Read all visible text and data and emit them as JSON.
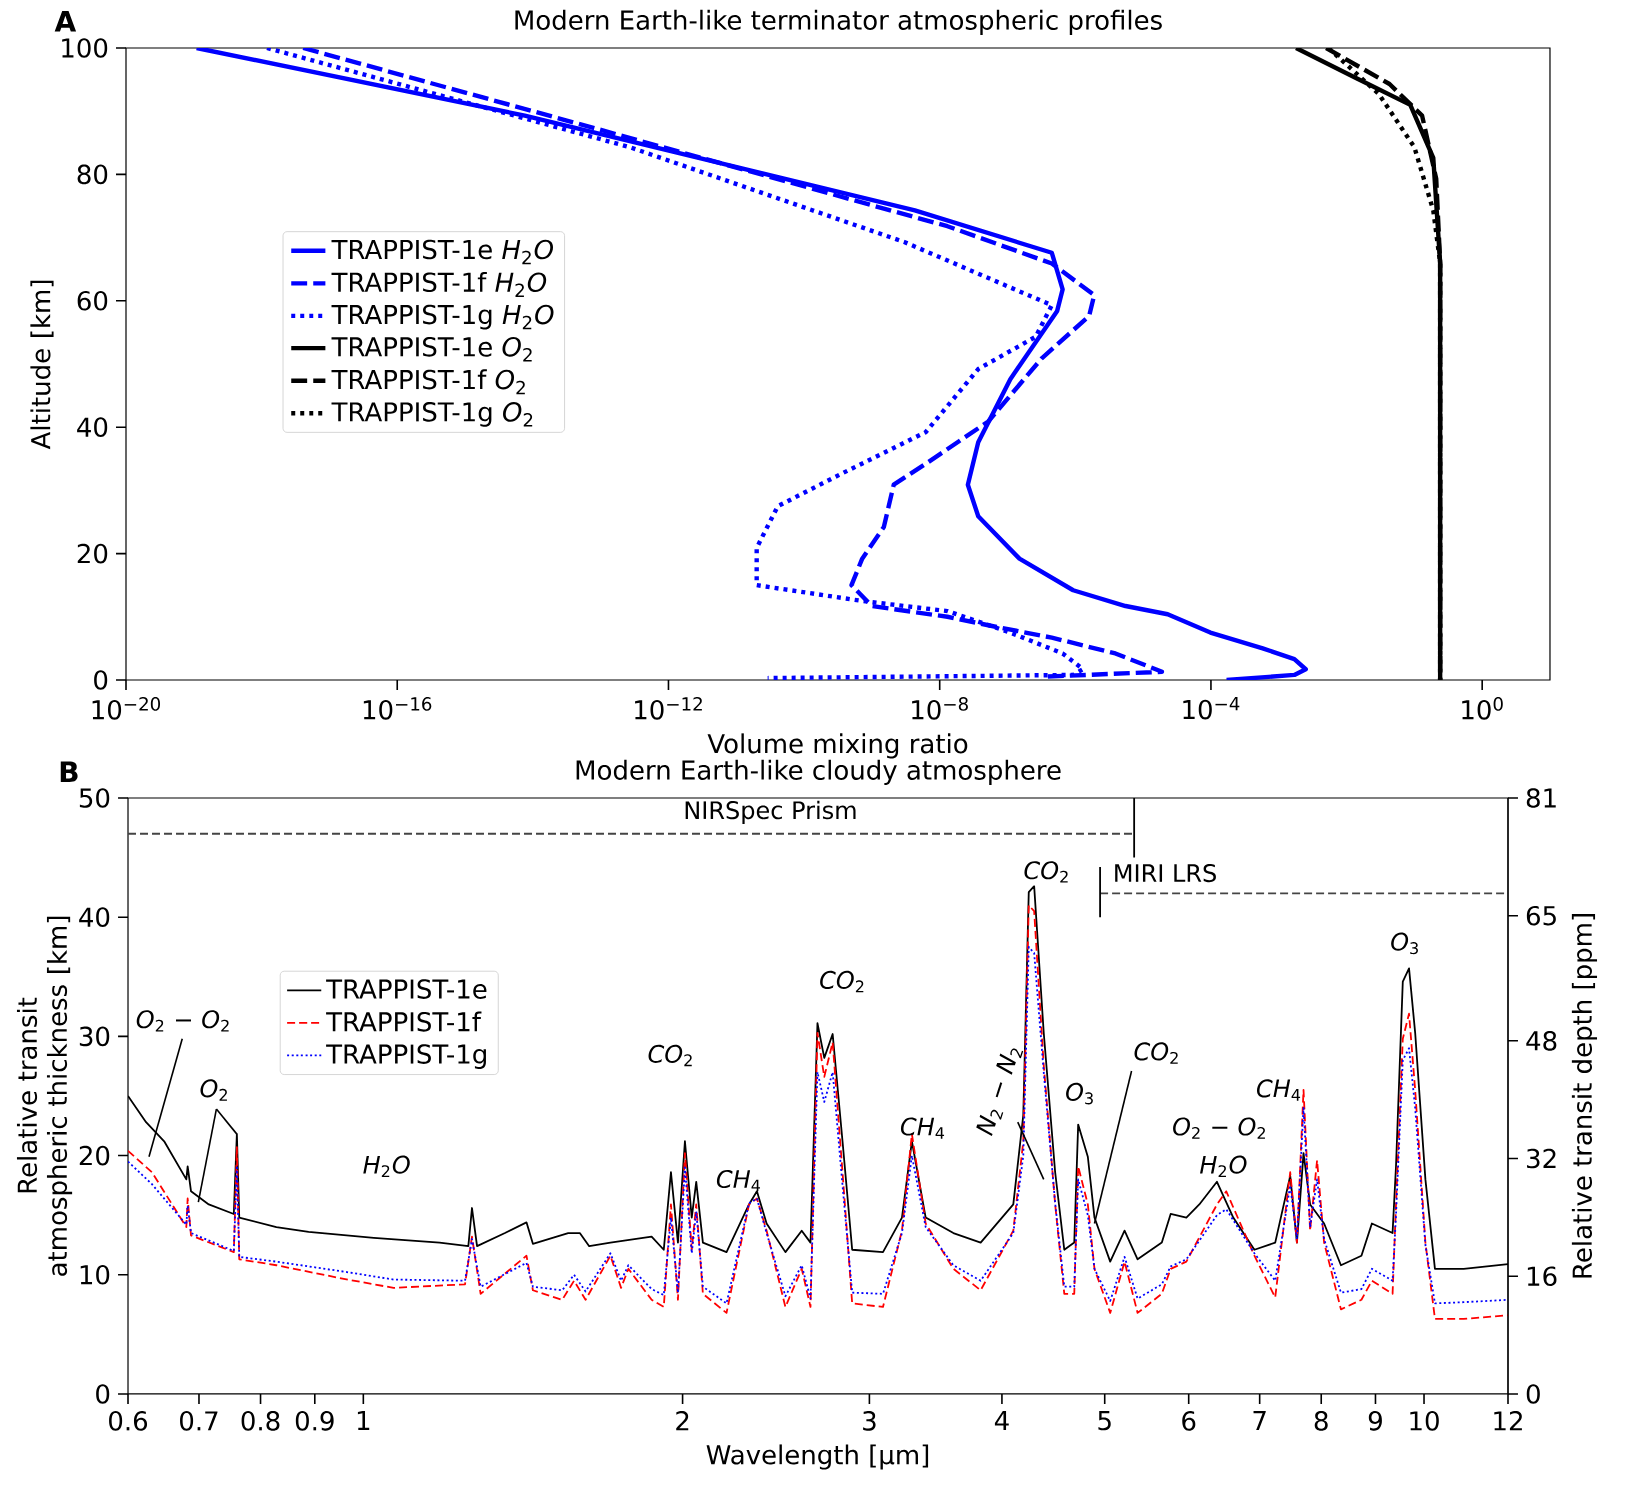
{
  "chart_data": [
    {
      "type": "line",
      "title": "Modern Earth-like terminator atmospheric profiles",
      "xlabel": "Volume mixing ratio",
      "ylabel": "Altitude [km]",
      "log": "x",
      "legend": "left",
      "xlim": [
        1e-20,
        10
      ],
      "ylim": [
        0,
        100
      ],
      "xticks": [
        {
          "value": 1e-20,
          "label": "10$^{−20}$"
        },
        {
          "value": 1e-16,
          "label": "10$^{−16}$"
        },
        {
          "value": 1e-12,
          "label": "10$^{−12}$"
        },
        {
          "value": 1e-08,
          "label": "10$^{−8}$"
        },
        {
          "value": 0.0001,
          "label": "10$^{−4}$"
        },
        {
          "value": 1,
          "label": "10$^{0}$"
        }
      ],
      "yticks": [
        0,
        20,
        40,
        60,
        80,
        100
      ],
      "annotations": [
        "A"
      ],
      "series": [
        {
          "name": "TRAPPIST-1e *H*$_{2}$*O*",
          "color": "#0000ff",
          "line_style": "solid",
          "x": [
            1.1e-19,
            7.6e-15,
            4.3e-09,
            4.5e-07,
            6.5e-07,
            5.4e-07,
            1.1e-07,
            3.7e-08,
            2.6e-08,
            3.7e-08,
            1.5e-07,
            9.3e-07,
            5.5e-06,
            2.3e-05,
            9.8e-05,
            0.00058,
            0.0017,
            0.0025,
            0.0017,
            0.00017
          ],
          "values": [
            100,
            89.3,
            74.3,
            67.6,
            61.8,
            58.4,
            47.6,
            37.6,
            30.9,
            25.9,
            19.2,
            14.2,
            11.7,
            10.4,
            7.5,
            5,
            3.3,
            1.7,
            0.8,
            0
          ]
        },
        {
          "name": "TRAPPIST-1f *H*$_{2}$*O*",
          "color": "#0000ff",
          "line_style": "dashed",
          "x": [
            4.1e-18,
            6.5e-14,
            1.3e-08,
            4.5e-07,
            1.9e-06,
            1.6e-06,
            3.2e-07,
            5.2e-08,
            6.2e-09,
            2.1e-09,
            1.5e-09,
            7.2e-10,
            5e-10,
            1e-09,
            1.3e-08,
            7.6e-08,
            4.5e-07,
            3.9e-06,
            1.9e-05,
            3.2e-07
          ],
          "values": [
            100,
            87.6,
            71.8,
            65.9,
            60.9,
            57.6,
            50.9,
            40.9,
            34.2,
            30.9,
            24.2,
            19.2,
            15.0,
            11.7,
            10.0,
            8.3,
            6.7,
            4.2,
            1.3,
            0.5
          ]
        },
        {
          "name": "TRAPPIST-1g *H*$_{2}$*O*",
          "color": "#0000ff",
          "line_style": "dotted",
          "x": [
            1.2e-18,
            2.7e-13,
            3e-09,
            4.5e-07,
            2.6e-07,
            3.7e-08,
            6.2e-09,
            3.5e-10,
            4.1e-11,
            2e-11,
            2e-11,
            7.2e-10,
            1.3e-08,
            1.1e-07,
            6.5e-07,
            1.3e-06,
            9.3e-07,
            2.9e-11
          ],
          "values": [
            100,
            84.3,
            69.3,
            59.3,
            54.3,
            49.2,
            39.2,
            32.6,
            27.5,
            20.9,
            15.0,
            12.5,
            10.9,
            7.5,
            4.2,
            1.7,
            0.8,
            0.3
          ]
        },
        {
          "name": "TRAPPIST-1e *O*$_{2}$",
          "color": "#000000",
          "line_style": "solid",
          "x": [
            0.0018,
            0.014,
            0.087,
            0.19,
            0.24,
            0.24
          ],
          "values": [
            100,
            95.2,
            91,
            82.6,
            66,
            0
          ]
        },
        {
          "name": "TRAPPIST-1f *O*$_{2}$",
          "color": "#000000",
          "line_style": "dashed",
          "x": [
            0.005,
            0.043,
            0.13,
            0.21,
            0.24,
            0.24
          ],
          "values": [
            100,
            94.3,
            89.3,
            79.3,
            66,
            0
          ]
        },
        {
          "name": "TRAPPIST-1g *O*$_{2}$",
          "color": "#000000",
          "line_style": "dotted",
          "x": [
            0.0054,
            0.03,
            0.1,
            0.19,
            0.24,
            0.24
          ],
          "values": [
            100,
            92.7,
            84.3,
            74.3,
            66,
            0
          ]
        }
      ]
    },
    {
      "type": "line",
      "title": "Modern Earth-like cloudy atmosphere",
      "xlabel": "Wavelength [μm]",
      "ylabel": "Relative transit atmospheric thickness [km]",
      "y2label": "Relative transit depth [ppm]",
      "log": "x",
      "legend": "left",
      "xlim": [
        0.6,
        12
      ],
      "ylim": [
        0,
        50
      ],
      "y2lim": [
        0,
        81
      ],
      "xticks": [
        0.6,
        0.7,
        0.8,
        0.9,
        1,
        2,
        3,
        4,
        5,
        6,
        7,
        8,
        9,
        10,
        12
      ],
      "yticks": [
        0,
        10,
        20,
        30,
        40,
        50
      ],
      "y2ticks": [
        0,
        16,
        32,
        48,
        65,
        81
      ],
      "annotations": [
        "B",
        "*O*$_{2}$ − *O*$_{2}$",
        {
          "text": "*O*$_{2}$",
          "x": 0.76,
          "y": 21.8
        },
        "*H*$_{2}$*O*",
        "*CO*$_{2}$",
        "*CH*$_{4}$",
        "*CO*$_{2}$",
        "*CH*$_{4}$",
        "*N*$_{2}$ − *N*$_{2}$",
        "*CO*$_{2}$",
        "*O*$_{3}$",
        {
          "text": "*CO*$_{2}$",
          "x": 4.89,
          "y": 14.3
        },
        "*O*$_{2}$ − *O*$_{2}$",
        "*H*$_{2}$*O*",
        "*CH*$_{4}$",
        "*O*$_{3}$",
        "NIRSpec Prism",
        "MIRI LRS"
      ],
      "series": [
        {
          "name": "TRAPPIST-1e",
          "color": "#000000",
          "line_style": "solid",
          "x": [
            0.6,
            0.624,
            0.649,
            0.681,
            0.683,
            0.688,
            0.715,
            0.755,
            0.76,
            0.764,
            0.828,
            0.888,
            1.023,
            1.18,
            1.256,
            1.266,
            1.28,
            1.36,
            1.425,
            1.445,
            1.56,
            1.6,
            1.633,
            1.71,
            1.87,
            1.92,
            1.95,
            1.98,
            2.01,
            2.04,
            2.06,
            2.09,
            2.2,
            2.31,
            2.35,
            2.4,
            2.5,
            2.59,
            2.64,
            2.68,
            2.72,
            2.77,
            2.83,
            2.89,
            3.09,
            3.22,
            3.29,
            3.39,
            3.6,
            3.82,
            4.1,
            4.19,
            4.24,
            4.29,
            4.38,
            4.49,
            4.58,
            4.68,
            4.72,
            4.82,
            4.89,
            5.06,
            5.22,
            5.37,
            5.66,
            5.77,
            5.97,
            6.14,
            6.38,
            6.61,
            6.92,
            7.24,
            7.48,
            7.59,
            7.7,
            7.81,
            8.05,
            8.35,
            8.73,
            8.93,
            9.34,
            9.41,
            9.55,
            9.68,
            9.81,
            10.03,
            10.24,
            10.9,
            12
          ],
          "values": [
            25.0,
            22.8,
            21.2,
            18.0,
            19.1,
            17.0,
            15.9,
            15.1,
            21.8,
            14.8,
            14.0,
            13.6,
            13.1,
            12.7,
            12.4,
            15.6,
            12.4,
            13.5,
            14.4,
            12.6,
            13.5,
            13.5,
            12.4,
            12.7,
            13.2,
            12.1,
            18.6,
            12.7,
            21.2,
            14.8,
            17.8,
            12.7,
            11.9,
            15.9,
            17.0,
            14.3,
            11.9,
            13.7,
            12.7,
            31.1,
            28.2,
            30.2,
            21.2,
            12.1,
            11.9,
            14.8,
            21.2,
            14.8,
            13.5,
            12.7,
            15.9,
            23.4,
            42.1,
            42.6,
            30.3,
            18.6,
            12.1,
            12.7,
            22.6,
            19.9,
            14.8,
            11.1,
            13.7,
            11.3,
            12.7,
            15.1,
            14.8,
            15.9,
            17.8,
            14.8,
            12.1,
            12.7,
            18.3,
            12.7,
            20.2,
            15.9,
            14.3,
            10.8,
            11.6,
            14.3,
            13.5,
            19.1,
            34.6,
            35.7,
            30.3,
            18.0,
            10.5,
            10.5,
            10.9
          ]
        },
        {
          "name": "TRAPPIST-1f",
          "color": "#ff0000",
          "line_style": "dashed",
          "x": [
            0.6,
            0.632,
            0.681,
            0.683,
            0.688,
            0.755,
            0.76,
            0.764,
            0.828,
            0.953,
            1.068,
            1.247,
            1.266,
            1.29,
            1.425,
            1.445,
            1.54,
            1.58,
            1.62,
            1.71,
            1.75,
            1.778,
            1.87,
            1.92,
            1.95,
            1.98,
            2.01,
            2.04,
            2.06,
            2.09,
            2.2,
            2.31,
            2.35,
            2.4,
            2.5,
            2.59,
            2.64,
            2.68,
            2.72,
            2.77,
            2.83,
            2.89,
            3.09,
            3.22,
            3.29,
            3.39,
            3.6,
            3.82,
            4.1,
            4.19,
            4.24,
            4.29,
            4.38,
            4.49,
            4.58,
            4.68,
            4.72,
            4.82,
            4.89,
            5.06,
            5.22,
            5.37,
            5.66,
            5.77,
            5.97,
            6.38,
            6.51,
            6.92,
            7.24,
            7.48,
            7.59,
            7.7,
            7.81,
            7.93,
            8.05,
            8.35,
            8.73,
            8.93,
            9.34,
            9.41,
            9.55,
            9.68,
            9.81,
            10.03,
            10.24,
            10.9,
            12
          ],
          "values": [
            20.4,
            18.6,
            14.0,
            16.4,
            13.3,
            11.9,
            20.7,
            11.3,
            10.8,
            9.7,
            8.9,
            9.2,
            13.2,
            8.4,
            11.6,
            8.7,
            7.9,
            9.5,
            7.9,
            11.6,
            8.9,
            10.5,
            7.9,
            7.3,
            15.9,
            7.9,
            20.2,
            12.1,
            15.9,
            8.4,
            6.8,
            15.9,
            16.4,
            13.7,
            7.3,
            10.5,
            7.3,
            30.3,
            26.6,
            29.5,
            18.6,
            7.6,
            7.3,
            13.7,
            21.8,
            14.3,
            10.5,
            8.7,
            13.7,
            21.2,
            41.0,
            40.5,
            27.6,
            15.9,
            8.4,
            8.4,
            19.1,
            15.9,
            10.5,
            6.8,
            11.1,
            6.8,
            8.4,
            10.5,
            11.1,
            15.9,
            17.0,
            11.6,
            8.1,
            18.6,
            12.7,
            25.5,
            13.7,
            19.6,
            12.7,
            7.1,
            7.9,
            9.5,
            8.4,
            15.9,
            29.8,
            31.9,
            25.5,
            12.7,
            6.3,
            6.3,
            6.6
          ]
        },
        {
          "name": "TRAPPIST-1g",
          "color": "#0000ff",
          "line_style": "dotted",
          "x": [
            0.6,
            0.632,
            0.681,
            0.683,
            0.688,
            0.755,
            0.76,
            0.764,
            0.828,
            0.953,
            1.068,
            1.247,
            1.266,
            1.29,
            1.425,
            1.445,
            1.54,
            1.58,
            1.62,
            1.71,
            1.75,
            1.778,
            1.87,
            1.92,
            1.95,
            1.98,
            2.01,
            2.04,
            2.06,
            2.09,
            2.2,
            2.31,
            2.35,
            2.4,
            2.5,
            2.59,
            2.64,
            2.68,
            2.72,
            2.77,
            2.83,
            2.89,
            3.09,
            3.22,
            3.29,
            3.39,
            3.6,
            3.82,
            4.1,
            4.19,
            4.24,
            4.29,
            4.38,
            4.49,
            4.58,
            4.68,
            4.72,
            4.82,
            4.89,
            5.06,
            5.22,
            5.37,
            5.66,
            5.77,
            5.97,
            6.38,
            6.51,
            6.92,
            7.24,
            7.48,
            7.59,
            7.7,
            7.81,
            7.93,
            8.05,
            8.35,
            8.73,
            8.93,
            9.34,
            9.41,
            9.55,
            9.68,
            9.81,
            10.03,
            10.24,
            10.9,
            12
          ],
          "values": [
            19.5,
            17.6,
            14.2,
            15.8,
            13.5,
            12.0,
            19.0,
            11.5,
            11.1,
            10.3,
            9.6,
            9.5,
            13.0,
            9.0,
            11.0,
            9.0,
            8.7,
            10.0,
            8.6,
            11.8,
            9.5,
            10.8,
            8.8,
            8.3,
            14.8,
            8.5,
            19.0,
            11.8,
            15.3,
            9.0,
            7.6,
            16.0,
            16.4,
            13.5,
            8.2,
            10.8,
            8.0,
            27.0,
            24.5,
            27.0,
            17.5,
            8.5,
            8.4,
            13.5,
            20.0,
            14.0,
            10.8,
            9.5,
            13.5,
            20.0,
            37.5,
            37.0,
            27.0,
            16.0,
            9.0,
            9.0,
            18.0,
            15.0,
            10.5,
            7.8,
            11.5,
            8.0,
            9.2,
            10.7,
            11.3,
            15.0,
            15.5,
            11.8,
            9.5,
            17.5,
            13.0,
            24.0,
            14.0,
            18.0,
            13.0,
            8.5,
            8.8,
            10.5,
            9.5,
            15.0,
            28.0,
            29.0,
            24.0,
            12.5,
            7.6,
            7.7,
            7.9
          ]
        },
        {
          "color": "#444444",
          "line_style": "dashed",
          "x": [
            0.6,
            5.33
          ],
          "values": [
            47,
            47
          ]
        },
        {
          "color": "#000000",
          "line_style": "solid",
          "x": [
            5.33,
            5.33
          ],
          "values": [
            45,
            50
          ]
        },
        {
          "color": "#444444",
          "line_style": "dashed",
          "x": [
            4.95,
            12
          ],
          "values": [
            42,
            42
          ]
        },
        {
          "color": "#000000",
          "line_style": "solid",
          "x": [
            4.95,
            4.95
          ],
          "values": [
            40,
            44.2
          ]
        }
      ]
    }
  ]
}
